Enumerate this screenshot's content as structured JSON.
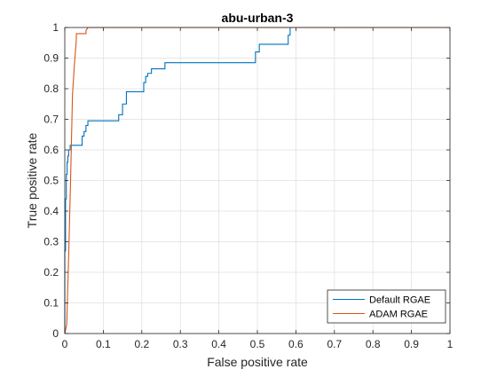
{
  "chart_data": {
    "type": "line",
    "title": "abu-urban-3",
    "xlabel": "False positive rate",
    "ylabel": "True positive rate",
    "xlim": [
      0,
      1
    ],
    "ylim": [
      0,
      1
    ],
    "xticks": [
      "0",
      "0.1",
      "0.2",
      "0.3",
      "0.4",
      "0.5",
      "0.6",
      "0.7",
      "0.8",
      "0.9",
      "1"
    ],
    "yticks": [
      "0",
      "0.1",
      "0.2",
      "0.3",
      "0.4",
      "0.5",
      "0.6",
      "0.7",
      "0.8",
      "0.9",
      "1"
    ],
    "grid": true,
    "legend_position": "bottom-right",
    "series": [
      {
        "name": "Default RGAE",
        "color": "#0072BD",
        "x": [
          0,
          0,
          0.002,
          0.002,
          0.004,
          0.004,
          0.006,
          0.006,
          0.008,
          0.008,
          0.01,
          0.01,
          0.014,
          0.014,
          0.018,
          0.018,
          0.045,
          0.045,
          0.05,
          0.05,
          0.055,
          0.055,
          0.06,
          0.06,
          0.14,
          0.14,
          0.15,
          0.15,
          0.16,
          0.16,
          0.205,
          0.205,
          0.21,
          0.21,
          0.215,
          0.215,
          0.225,
          0.225,
          0.26,
          0.26,
          0.495,
          0.495,
          0.505,
          0.505,
          0.58,
          0.58,
          0.585,
          0.585,
          1
        ],
        "y": [
          0,
          0.27,
          0.27,
          0.44,
          0.44,
          0.52,
          0.52,
          0.56,
          0.56,
          0.58,
          0.58,
          0.6,
          0.6,
          0.615,
          0.615,
          0.615,
          0.615,
          0.645,
          0.645,
          0.66,
          0.66,
          0.68,
          0.68,
          0.695,
          0.695,
          0.715,
          0.715,
          0.75,
          0.75,
          0.79,
          0.79,
          0.82,
          0.82,
          0.84,
          0.84,
          0.85,
          0.85,
          0.865,
          0.865,
          0.885,
          0.885,
          0.92,
          0.92,
          0.945,
          0.945,
          0.975,
          0.975,
          1.0,
          1.0
        ]
      },
      {
        "name": "ADAM RGAE",
        "color": "#D95319",
        "x": [
          0,
          0.005,
          0.01,
          0.015,
          0.02,
          0.025,
          0.03,
          0.03,
          0.055,
          0.055,
          0.06,
          1
        ],
        "y": [
          0,
          0.03,
          0.25,
          0.5,
          0.78,
          0.88,
          0.96,
          0.98,
          0.98,
          0.99,
          1.0,
          1.0
        ]
      }
    ]
  }
}
